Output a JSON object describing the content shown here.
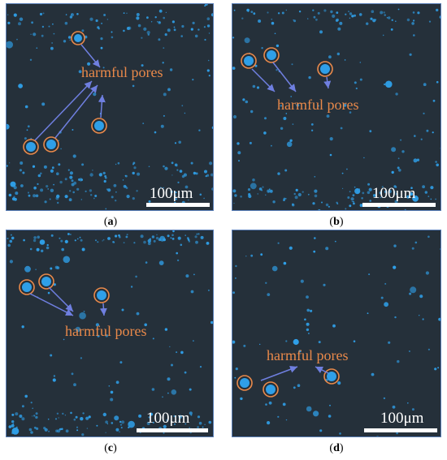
{
  "panels": [
    {
      "id": "a",
      "caption_letter": "a",
      "annotation": "harmful pores",
      "scale_label": "100μm"
    },
    {
      "id": "b",
      "caption_letter": "b",
      "annotation": "harmful pores",
      "scale_label": "100μm"
    },
    {
      "id": "c",
      "caption_letter": "c",
      "annotation": "harmful pores",
      "scale_label": "100μm"
    },
    {
      "id": "d",
      "caption_letter": "d",
      "annotation": "harmful pores",
      "scale_label": "100μm"
    }
  ],
  "colors": {
    "background": "#25303a",
    "pore": "#2f9fe8",
    "circle": "#e9894a",
    "arrow": "#6f7fe0",
    "scale": "#ffffff"
  }
}
